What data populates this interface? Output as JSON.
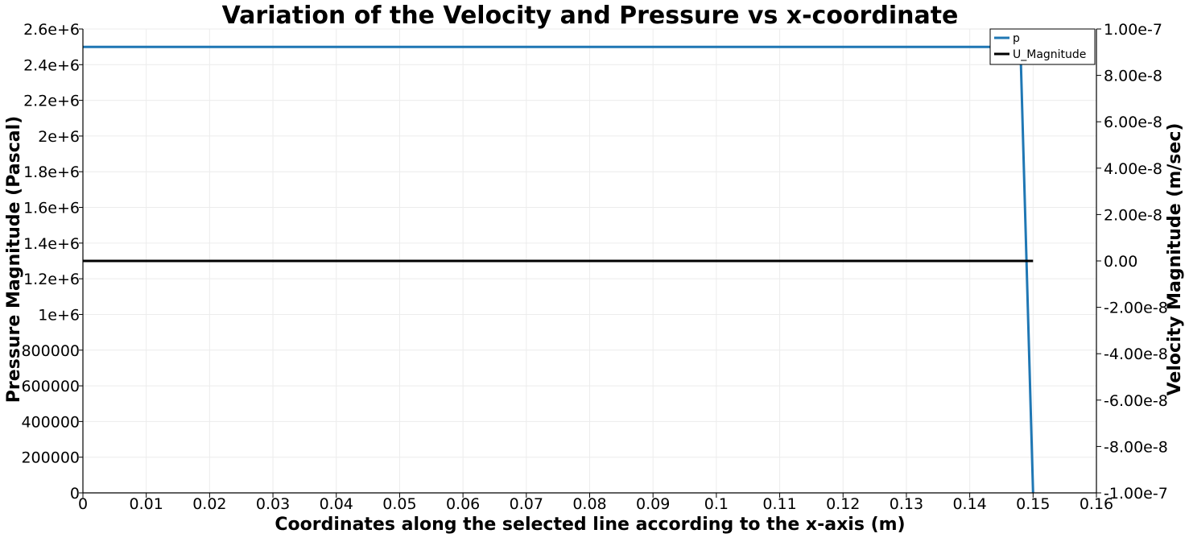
{
  "chart_data": {
    "type": "line",
    "title": "Variation of the Velocity and Pressure vs x-coordinate",
    "xlabel": "Coordinates along the selected line according to the x-axis (m)",
    "ylabel_left": "Pressure Magnitude (Pascal)",
    "ylabel_right": "Velocity Magnitude (m/sec)",
    "xlim": [
      0,
      0.16
    ],
    "ylim_left": [
      0,
      2600000
    ],
    "ylim_right": [
      -1e-07,
      1e-07
    ],
    "grid": true,
    "legend_position": "top-right",
    "x_ticks": [
      "0",
      "0.01",
      "0.02",
      "0.03",
      "0.04",
      "0.05",
      "0.06",
      "0.07",
      "0.08",
      "0.09",
      "0.1",
      "0.11",
      "0.12",
      "0.13",
      "0.14",
      "0.15",
      "0.16"
    ],
    "y_left_ticks": [
      "0",
      "200000",
      "400000",
      "600000",
      "800000",
      "1e+6",
      "1.2e+6",
      "1.4e+6",
      "1.6e+6",
      "1.8e+6",
      "2e+6",
      "2.2e+6",
      "2.4e+6",
      "2.6e+6"
    ],
    "y_right_ticks": [
      "-1.00e-7",
      "-8.00e-8",
      "-6.00e-8",
      "-4.00e-8",
      "-2.00e-8",
      "0.00",
      "2.00e-8",
      "4.00e-8",
      "6.00e-8",
      "8.00e-8",
      "1.00e-7"
    ],
    "series": [
      {
        "name": "p",
        "axis": "left",
        "color": "#1f77b4",
        "x": [
          0,
          0.148,
          0.15
        ],
        "y": [
          2500000,
          2500000,
          0
        ]
      },
      {
        "name": "U_Magnitude",
        "axis": "right",
        "color": "#000000",
        "x": [
          0,
          0.15
        ],
        "y": [
          0,
          0
        ]
      }
    ]
  }
}
